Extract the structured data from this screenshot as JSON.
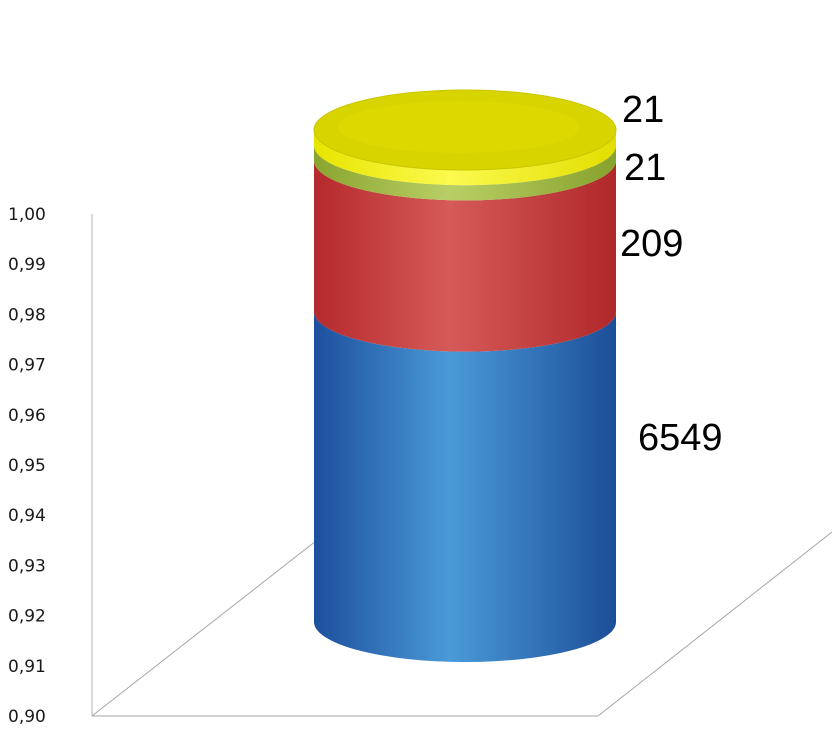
{
  "chart_data": {
    "type": "bar",
    "stacked": true,
    "style": "3d-cylinder",
    "categories": [
      ""
    ],
    "series": [
      {
        "value": 6549,
        "color": "#2f6fbf"
      },
      {
        "value": 209,
        "color": "#c0393b"
      },
      {
        "value": 21,
        "color": "#9bbb3b"
      },
      {
        "value": 21,
        "color": "#e4e000"
      }
    ],
    "data_labels": [
      "6549",
      "209",
      "21",
      "21"
    ],
    "ylim": [
      0.9,
      1.0
    ],
    "yticks": [
      "0,90",
      "0,91",
      "0,92",
      "0,93",
      "0,94",
      "0,95",
      "0,96",
      "0,97",
      "0,98",
      "0,99",
      "1,00"
    ],
    "grid": false,
    "legend": "none"
  }
}
